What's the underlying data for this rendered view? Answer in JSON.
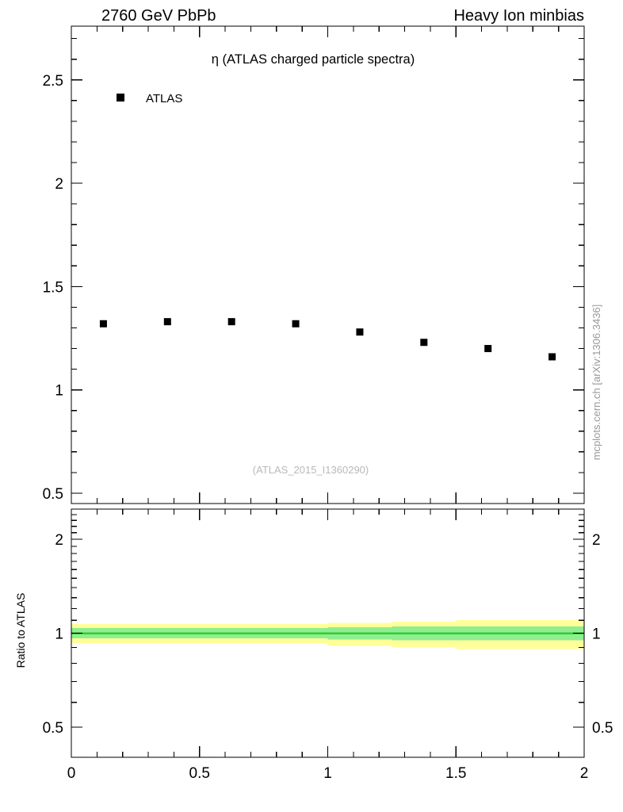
{
  "header": {
    "left": "2760 GeV PbPb",
    "right": "Heavy Ion minbias"
  },
  "side_note": "mcplots.cern.ch [arXiv:1306.3436]",
  "watermark": "(ATLAS_2015_I1360290)",
  "colors": {
    "marker": "#000000",
    "frame": "#000000",
    "band_outer": "#ffff99",
    "band_inner": "#90ee90",
    "ratio_line": "#33cc33",
    "watermark_text": "#b9b9b9",
    "side_text": "#999999"
  },
  "chart_data": [
    {
      "type": "scatter",
      "panel": "main",
      "title": "η (ATLAS charged particle spectra)",
      "legend": [
        {
          "label": "ATLAS",
          "marker": "filled-square",
          "color": "#000000"
        }
      ],
      "x": [
        0.125,
        0.375,
        0.625,
        0.875,
        1.125,
        1.375,
        1.625,
        1.875
      ],
      "y": [
        1.32,
        1.33,
        1.33,
        1.32,
        1.28,
        1.23,
        1.2,
        1.16
      ],
      "xlim": [
        0,
        2
      ],
      "ylim": [
        0.45,
        2.76
      ],
      "yscale": "linear",
      "yticks": [
        0.5,
        1,
        1.5,
        2,
        2.5
      ],
      "ytick_labels": [
        "0.5",
        "1",
        "1.5",
        "2",
        "2.5"
      ],
      "xticks": [
        0,
        0.5,
        1,
        1.5,
        2
      ],
      "x_minor_step": 0.1,
      "y_minor_step": 0.1,
      "grid": false
    },
    {
      "type": "band",
      "panel": "ratio",
      "ylabel": "Ratio to ATLAS",
      "yscale": "log",
      "xlim": [
        0,
        2
      ],
      "ylim": [
        0.4,
        2.5
      ],
      "yticks": [
        0.5,
        1,
        2
      ],
      "ytick_labels": [
        "0.5",
        "1",
        "2"
      ],
      "xticks": [
        0,
        0.5,
        1,
        1.5,
        2
      ],
      "xtick_labels": [
        "0",
        "0.5",
        "1",
        "1.5",
        "2"
      ],
      "x_minor_step": 0.1,
      "bin_edges": [
        0,
        0.25,
        0.5,
        0.75,
        1,
        1.25,
        1.5,
        1.75,
        2
      ],
      "band_outer_lo": [
        0.93,
        0.93,
        0.93,
        0.93,
        0.91,
        0.9,
        0.89,
        0.89
      ],
      "band_outer_hi": [
        1.07,
        1.07,
        1.07,
        1.07,
        1.08,
        1.09,
        1.1,
        1.1
      ],
      "band_inner_lo": [
        0.962,
        0.962,
        0.962,
        0.962,
        0.955,
        0.95,
        0.95,
        0.95
      ],
      "band_inner_hi": [
        1.038,
        1.038,
        1.038,
        1.038,
        1.045,
        1.05,
        1.05,
        1.05
      ],
      "ratio_line_y": 1.0
    }
  ]
}
